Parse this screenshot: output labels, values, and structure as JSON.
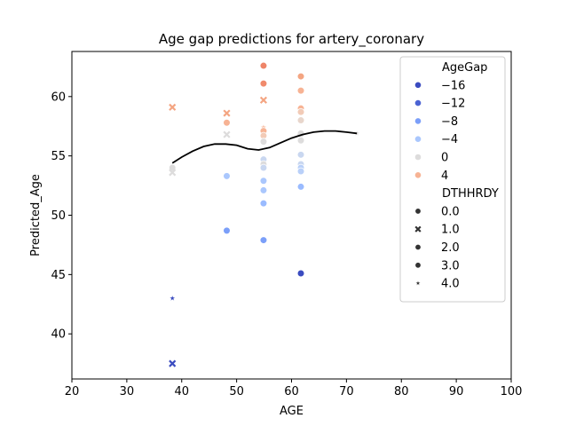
{
  "chart_data": {
    "type": "scatter",
    "title": "Age gap predictions for artery_coronary",
    "xlabel": "AGE",
    "ylabel": "Predicted_Age",
    "xlim": [
      20,
      100
    ],
    "ylim": [
      36.2,
      63.8
    ],
    "xticks": [
      20,
      30,
      40,
      50,
      60,
      70,
      80,
      90,
      100
    ],
    "yticks": [
      40,
      45,
      50,
      55,
      60
    ],
    "grid": false,
    "legend_position": "top-right",
    "hue_legend": {
      "title": "AgeGap",
      "entries": [
        {
          "label": "−16",
          "color": "#3b4cc0"
        },
        {
          "label": "−12",
          "color": "#4b63d3"
        },
        {
          "label": "−8",
          "color": "#7b9ff9"
        },
        {
          "label": "−4",
          "color": "#aac7fd"
        },
        {
          "label": "0",
          "color": "#dddcdc"
        },
        {
          "label": "4",
          "color": "#f7b394"
        }
      ]
    },
    "style_legend": {
      "title": "DTHHRDY",
      "entries": [
        {
          "label": "0.0",
          "marker": "circle"
        },
        {
          "label": "1.0",
          "marker": "x"
        },
        {
          "label": "2.0",
          "marker": "circle"
        },
        {
          "label": "3.0",
          "marker": "circle"
        },
        {
          "label": "4.0",
          "marker": "star"
        }
      ]
    },
    "points": [
      {
        "x": 38.3,
        "y": 59.1,
        "marker": "x",
        "color": "#f4a582"
      },
      {
        "x": 38.3,
        "y": 54.0,
        "marker": "circle",
        "color": "#dddcdc"
      },
      {
        "x": 38.3,
        "y": 53.6,
        "marker": "x",
        "color": "#dddcdc"
      },
      {
        "x": 38.3,
        "y": 43.0,
        "marker": "star",
        "color": "#3b4cc0"
      },
      {
        "x": 38.3,
        "y": 37.5,
        "marker": "x",
        "color": "#3b4cc0"
      },
      {
        "x": 48.2,
        "y": 58.6,
        "marker": "x",
        "color": "#f4a582"
      },
      {
        "x": 48.2,
        "y": 57.8,
        "marker": "circle",
        "color": "#f7b394"
      },
      {
        "x": 48.2,
        "y": 56.8,
        "marker": "x",
        "color": "#dddcdc"
      },
      {
        "x": 48.2,
        "y": 53.3,
        "marker": "circle",
        "color": "#aac7fd"
      },
      {
        "x": 48.2,
        "y": 48.7,
        "marker": "circle",
        "color": "#7b9ff9"
      },
      {
        "x": 54.9,
        "y": 62.6,
        "marker": "circle",
        "color": "#ee8468"
      },
      {
        "x": 54.9,
        "y": 61.1,
        "marker": "circle",
        "color": "#f08a6c"
      },
      {
        "x": 54.9,
        "y": 59.7,
        "marker": "x",
        "color": "#f4a582"
      },
      {
        "x": 54.9,
        "y": 57.4,
        "marker": "star",
        "color": "#f7b394"
      },
      {
        "x": 54.9,
        "y": 57.1,
        "marker": "circle",
        "color": "#f7b394"
      },
      {
        "x": 54.9,
        "y": 56.7,
        "marker": "circle",
        "color": "#f2cbb7"
      },
      {
        "x": 54.9,
        "y": 56.2,
        "marker": "circle",
        "color": "#dddcdc"
      },
      {
        "x": 54.9,
        "y": 54.7,
        "marker": "circle",
        "color": "#c9d7f0"
      },
      {
        "x": 54.9,
        "y": 54.3,
        "marker": "circle",
        "color": "#dddcdc"
      },
      {
        "x": 54.9,
        "y": 54.0,
        "marker": "circle",
        "color": "#c9d7f0"
      },
      {
        "x": 54.9,
        "y": 52.9,
        "marker": "circle",
        "color": "#aac7fd"
      },
      {
        "x": 54.9,
        "y": 52.1,
        "marker": "circle",
        "color": "#aac7fd"
      },
      {
        "x": 54.9,
        "y": 51.0,
        "marker": "circle",
        "color": "#9abbff"
      },
      {
        "x": 54.9,
        "y": 47.9,
        "marker": "circle",
        "color": "#7b9ff9"
      },
      {
        "x": 61.7,
        "y": 61.7,
        "marker": "circle",
        "color": "#f4a582"
      },
      {
        "x": 61.7,
        "y": 60.5,
        "marker": "circle",
        "color": "#f7b394"
      },
      {
        "x": 61.7,
        "y": 59.0,
        "marker": "circle",
        "color": "#f7b394"
      },
      {
        "x": 61.7,
        "y": 58.7,
        "marker": "circle",
        "color": "#f2cbb7"
      },
      {
        "x": 61.7,
        "y": 58.0,
        "marker": "circle",
        "color": "#e8d6cc"
      },
      {
        "x": 61.7,
        "y": 56.9,
        "marker": "circle",
        "color": "#dddcdc"
      },
      {
        "x": 61.7,
        "y": 56.6,
        "marker": "x",
        "color": "#dddcdc"
      },
      {
        "x": 61.7,
        "y": 56.3,
        "marker": "circle",
        "color": "#dddcdc"
      },
      {
        "x": 61.7,
        "y": 55.1,
        "marker": "circle",
        "color": "#c9d7f0"
      },
      {
        "x": 61.7,
        "y": 54.3,
        "marker": "circle",
        "color": "#c9d7f0"
      },
      {
        "x": 61.7,
        "y": 54.0,
        "marker": "circle",
        "color": "#b9d0f9"
      },
      {
        "x": 61.7,
        "y": 53.7,
        "marker": "circle",
        "color": "#b9d0f9"
      },
      {
        "x": 61.7,
        "y": 52.4,
        "marker": "circle",
        "color": "#9abbff"
      },
      {
        "x": 61.7,
        "y": 45.1,
        "marker": "circle",
        "color": "#3b4cc0"
      },
      {
        "x": 71.9,
        "y": 56.9,
        "marker": "star",
        "color": "#dddcdc"
      }
    ],
    "trend_line": {
      "color": "#000000",
      "x": [
        38.3,
        40,
        42,
        44,
        46,
        48,
        50,
        52,
        54,
        56,
        58,
        60,
        62,
        64,
        66,
        68,
        70,
        71.9
      ],
      "y": [
        54.4,
        54.9,
        55.4,
        55.8,
        56.0,
        56.0,
        55.9,
        55.6,
        55.5,
        55.7,
        56.1,
        56.5,
        56.8,
        57.0,
        57.1,
        57.1,
        57.0,
        56.9
      ]
    }
  }
}
